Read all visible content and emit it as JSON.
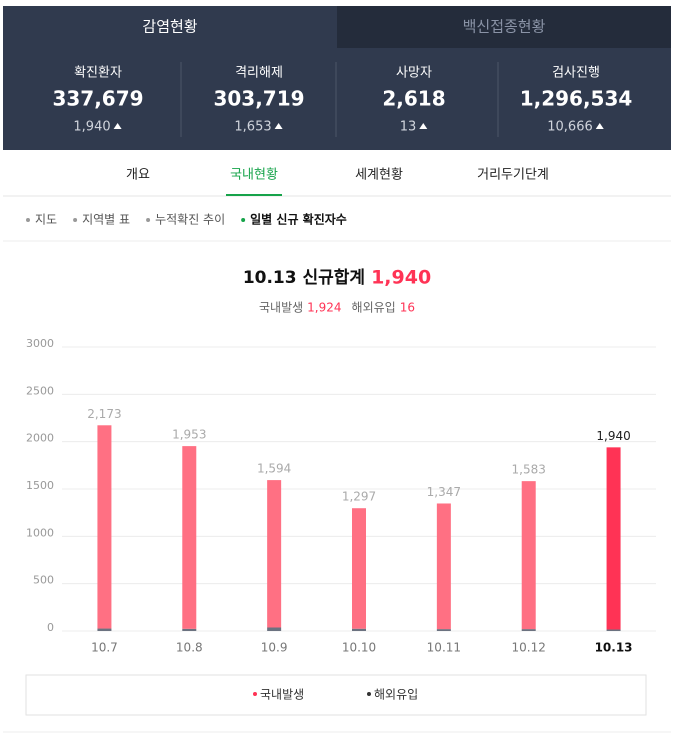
{
  "tabs": [
    "감염현황",
    "백신접종현황"
  ],
  "stats": [
    {
      "label": "확진환자",
      "value": "337,679",
      "change": "1,940"
    },
    {
      "label": "격리해제",
      "value": "303,719",
      "change": "1,653"
    },
    {
      "label": "사망자",
      "value": "2,618",
      "change": "13"
    },
    {
      "label": "검사진행",
      "value": "1,296,534",
      "change": "10,666"
    }
  ],
  "nav": [
    "개요",
    "국내현황",
    "세계현황",
    "거리두기단계"
  ],
  "submenu": [
    "지도",
    "지역별 표",
    "누적확진 추이",
    "일별 신규 확진자수"
  ],
  "chart_data": {
    "type": "bar",
    "stacked": true,
    "title": "10.13 신규합계",
    "title_value": "1,940",
    "subtitle": {
      "domestic_label": "국내발생",
      "domestic_value": "1,924",
      "overseas_label": "해외유입",
      "overseas_value": "16"
    },
    "categories": [
      "10.7",
      "10.8",
      "10.9",
      "10.10",
      "10.11",
      "10.12",
      "10.13"
    ],
    "series": [
      {
        "name": "국내발생",
        "color": "#ff7083",
        "values": [
          2147,
          1930,
          1557,
          1273,
          1327,
          1563,
          1924
        ]
      },
      {
        "name": "해외유입",
        "color": "#6b7280",
        "values": [
          26,
          23,
          37,
          24,
          20,
          20,
          16
        ]
      }
    ],
    "totals": [
      2173,
      1953,
      1594,
      1297,
      1347,
      1583,
      1940
    ],
    "total_labels": [
      "2,173",
      "1,953",
      "1,594",
      "1,297",
      "1,347",
      "1,583",
      "1,940"
    ],
    "highlight_color": "#ff3355",
    "ylim": [
      0,
      3000
    ],
    "yticks": [
      0,
      500,
      1000,
      1500,
      2000,
      2500,
      3000
    ],
    "grid": true
  }
}
